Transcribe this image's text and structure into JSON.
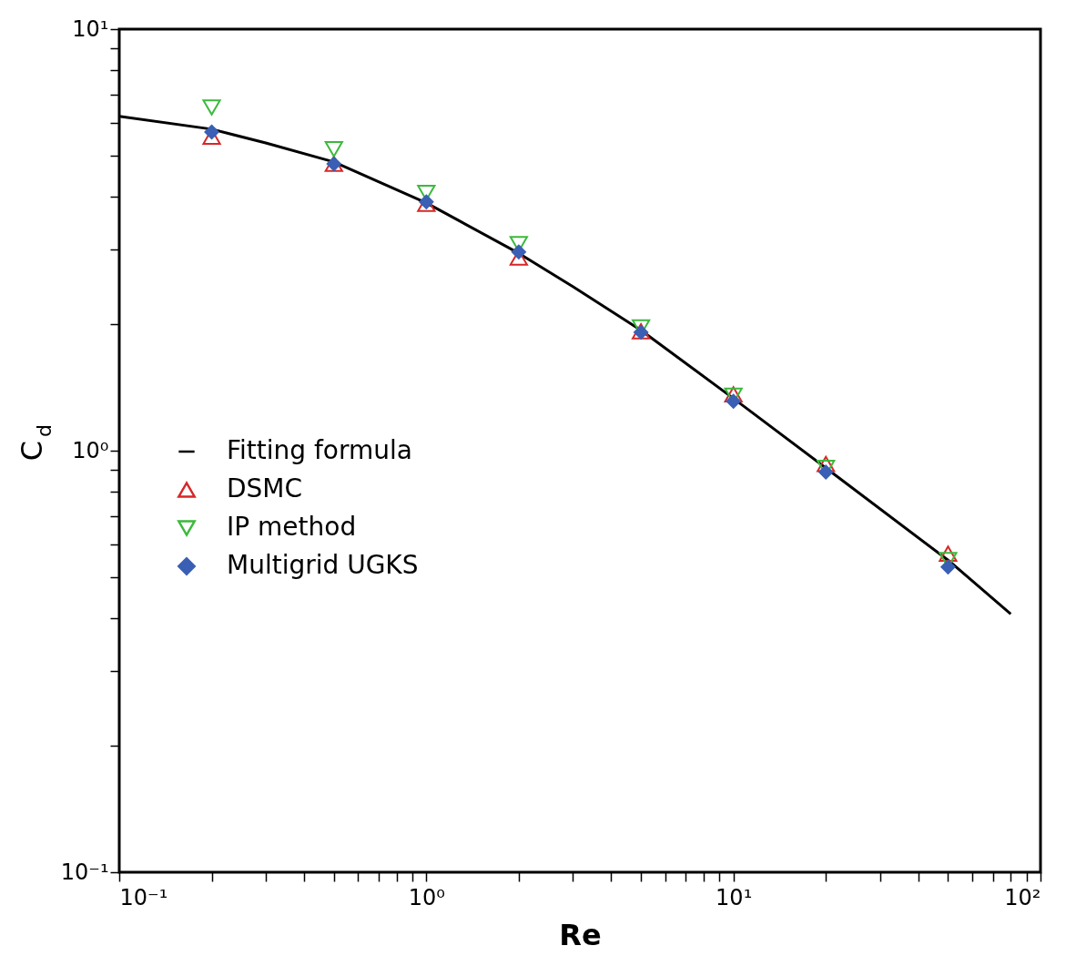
{
  "chart_data": {
    "type": "scatter",
    "xlabel": "Re",
    "ylabel": "C$_{d}$",
    "log": "xy",
    "xlim": [
      0.1,
      100
    ],
    "ylim": [
      0.1,
      10
    ],
    "xticks": [
      {
        "value": 0.1,
        "label": "10⁻¹"
      },
      {
        "value": 0.2,
        "label": null
      },
      {
        "value": 0.3,
        "label": null
      },
      {
        "value": 0.4,
        "label": null
      },
      {
        "value": 0.5,
        "label": null
      },
      {
        "value": 0.6,
        "label": null
      },
      {
        "value": 0.7,
        "label": null
      },
      {
        "value": 0.8,
        "label": null
      },
      {
        "value": 0.9,
        "label": null
      },
      {
        "value": 1,
        "label": "10⁰"
      },
      {
        "value": 2,
        "label": null
      },
      {
        "value": 3,
        "label": null
      },
      {
        "value": 4,
        "label": null
      },
      {
        "value": 5,
        "label": null
      },
      {
        "value": 6,
        "label": null
      },
      {
        "value": 7,
        "label": null
      },
      {
        "value": 8,
        "label": null
      },
      {
        "value": 9,
        "label": null
      },
      {
        "value": 10,
        "label": "10¹"
      },
      {
        "value": 20,
        "label": null
      },
      {
        "value": 30,
        "label": null
      },
      {
        "value": 40,
        "label": null
      },
      {
        "value": 50,
        "label": null
      },
      {
        "value": 60,
        "label": null
      },
      {
        "value": 70,
        "label": null
      },
      {
        "value": 80,
        "label": null
      },
      {
        "value": 90,
        "label": null
      },
      {
        "value": 100,
        "label": "10²"
      }
    ],
    "yticks": [
      {
        "value": 0.1,
        "label": "10⁻¹"
      },
      {
        "value": 0.2,
        "label": null
      },
      {
        "value": 0.3,
        "label": null
      },
      {
        "value": 0.4,
        "label": null
      },
      {
        "value": 0.5,
        "label": null
      },
      {
        "value": 0.6,
        "label": null
      },
      {
        "value": 0.7,
        "label": null
      },
      {
        "value": 0.8,
        "label": null
      },
      {
        "value": 0.9,
        "label": null
      },
      {
        "value": 1,
        "label": "10⁰"
      },
      {
        "value": 2,
        "label": null
      },
      {
        "value": 3,
        "label": null
      },
      {
        "value": 4,
        "label": null
      },
      {
        "value": 5,
        "label": null
      },
      {
        "value": 6,
        "label": null
      },
      {
        "value": 7,
        "label": null
      },
      {
        "value": 8,
        "label": null
      },
      {
        "value": 9,
        "label": null
      },
      {
        "value": 10,
        "label": "10¹"
      }
    ],
    "grid": false,
    "legend": "left",
    "series": [
      {
        "name": "Fitting formula",
        "type": "line",
        "marker": "none",
        "line_style": "solid",
        "color": "#000000",
        "x": [
          0.1,
          0.2,
          0.3,
          0.5,
          1,
          2,
          3,
          5,
          10,
          20,
          50,
          80
        ],
        "values": [
          6.21,
          5.79,
          5.37,
          4.84,
          3.87,
          2.94,
          2.45,
          1.93,
          1.33,
          0.91,
          0.55,
          0.41
        ]
      },
      {
        "name": "DSMC",
        "marker": "triangle",
        "color": "#d62728",
        "x": [
          0.2,
          0.5,
          1,
          2,
          5,
          10,
          20,
          50
        ],
        "values": [
          5.56,
          4.79,
          3.85,
          2.87,
          1.92,
          1.36,
          0.93,
          0.57
        ]
      },
      {
        "name": "IP method",
        "marker": "triangle-down",
        "color": "#3cb93c",
        "x": [
          0.2,
          0.5,
          1,
          2,
          5,
          10,
          20,
          50
        ],
        "values": [
          6.52,
          5.19,
          4.09,
          3.09,
          1.96,
          1.35,
          0.91,
          0.55
        ]
      },
      {
        "name": "Multigrid UGKS",
        "marker": "diamond",
        "color": "#3a5fb4",
        "x": [
          0.2,
          0.5,
          1,
          2,
          5,
          10,
          20,
          50
        ],
        "values": [
          5.7,
          4.79,
          3.89,
          2.96,
          1.91,
          1.31,
          0.89,
          0.53
        ]
      }
    ]
  }
}
